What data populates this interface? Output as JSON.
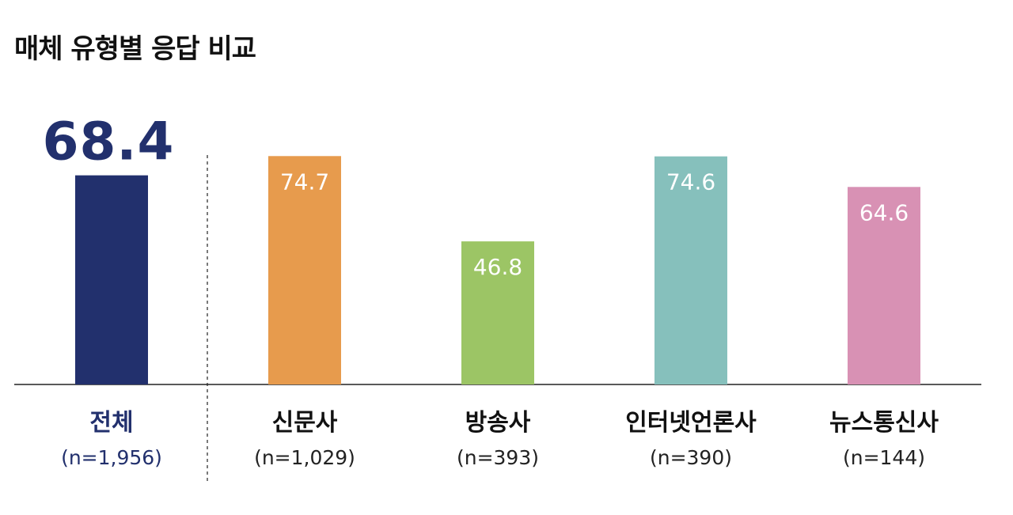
{
  "title": "매체 유형별 응답 비교",
  "chart_data": {
    "type": "bar",
    "title": "매체 유형별 응답 비교",
    "ylim": [
      0,
      80
    ],
    "grid": false,
    "legend": "none",
    "categories": [
      "전체",
      "신문사",
      "방송사",
      "인터넷언론사",
      "뉴스통신사"
    ],
    "sample_sizes": [
      "(n=1,956)",
      "(n=1,029)",
      "(n=393)",
      "(n=390)",
      "(n=144)"
    ],
    "values": [
      68.4,
      74.7,
      46.8,
      74.6,
      64.6
    ],
    "value_labels": [
      "68.4",
      "74.7",
      "46.8",
      "74.6",
      "64.6"
    ],
    "colors": [
      "#22306d",
      "#e79b4d",
      "#9cc565",
      "#86c0bc",
      "#d891b4"
    ],
    "category_label_colors": [
      "#22306d",
      "#111111",
      "#111111",
      "#111111",
      "#111111"
    ],
    "sample_label_colors": [
      "#22306d",
      "#222222",
      "#222222",
      "#222222",
      "#222222"
    ],
    "value_label_colors": [
      "#22306d",
      "#ffffff",
      "#ffffff",
      "#ffffff",
      "#ffffff"
    ],
    "divider_after_index": 0
  }
}
